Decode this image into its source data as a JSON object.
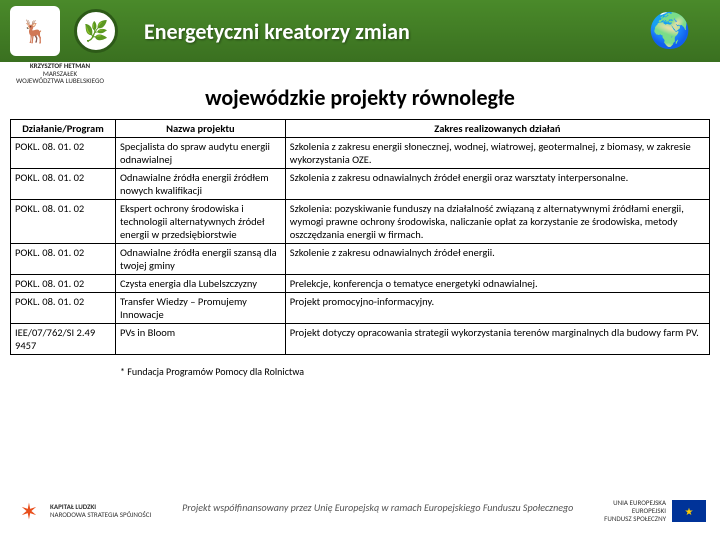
{
  "header": {
    "title": "Energetyczni kreatorzy zmian",
    "sub_left_line1": "KRZYSZTOF HETMAN",
    "sub_left_line2": "MARSZAŁEK",
    "sub_left_line3": "WOJEWÓDZTWA LUBELSKIEGO"
  },
  "page_title": "wojewódzkie projekty równoległe",
  "table": {
    "headers": [
      "Działanie/Program",
      "Nazwa projektu",
      "Zakres realizowanych działań"
    ],
    "rows": [
      [
        "POKL. 08. 01. 02",
        "Specjalista do spraw audytu energii odnawialnej",
        "Szkolenia z zakresu energii słonecznej, wodnej, wiatrowej, geotermalnej, z biomasy, w zakresie wykorzystania OZE."
      ],
      [
        "POKL. 08. 01. 02",
        "Odnawialne źródła energii źródłem nowych kwalifikacji",
        "Szkolenia z zakresu odnawialnych źródeł energii oraz  warsztaty interpersonalne."
      ],
      [
        "POKL. 08. 01. 02",
        "Ekspert ochrony środowiska i technologii alternatywnych źródeł energii w przedsiębiorstwie",
        "Szkolenia: pozyskiwanie funduszy na działalność związaną z alternatywnymi źródłami energii, wymogi prawne ochrony środowiska, naliczanie opłat za korzystanie ze środowiska, metody oszczędzania energii w firmach."
      ],
      [
        "POKL. 08. 01. 02",
        "Odnawialne źródła energii szansą dla twojej gminy",
        "Szkolenie z zakresu odnawialnych źródeł energii."
      ],
      [
        "POKL. 08. 01. 02",
        "Czysta energia dla Lubelszczyzny",
        "Prelekcje, konferencja o tematyce energetyki odnawialnej."
      ],
      [
        "POKL. 08. 01. 02",
        "Transfer Wiedzy – Promujemy Innowacje",
        "Projekt promocyjno-informacyjny."
      ],
      [
        "IEE/07/762/SI 2.49 9457",
        "PVs in Bloom",
        "Projekt dotyczy opracowania strategii wykorzystania terenów marginalnych dla budowy farm PV."
      ]
    ]
  },
  "footnote": "* Fundacja Programów Pomocy dla Rolnictwa",
  "footer": {
    "left_label1": "KAPITAŁ LUDZKI",
    "left_label2": "NARODOWA STRATEGIA SPÓJNOŚCI",
    "center": "Projekt współfinansowany przez Unię Europejską w ramach Europejskiego Funduszu Społecznego",
    "right_label1": "UNIA EUROPEJSKA",
    "right_label2": "EUROPEJSKI",
    "right_label3": "FUNDUSZ SPOŁECZNY"
  }
}
